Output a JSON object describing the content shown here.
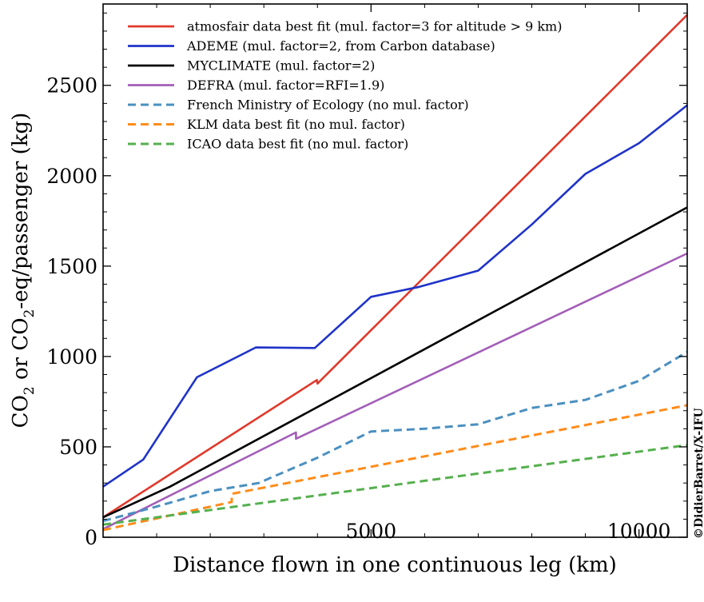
{
  "chart_data": {
    "type": "line",
    "xlabel": "Distance flown in one continuous leg (km)",
    "ylabel_parts": [
      "CO",
      "2",
      " or CO",
      "2",
      "-eq/passenger (kg)"
    ],
    "xlim": [
      0,
      10900
    ],
    "ylim": [
      0,
      2950
    ],
    "x_ticks": [
      5000,
      10000
    ],
    "y_ticks": [
      0,
      500,
      1000,
      1500,
      2000,
      2500
    ],
    "legend_position": "top-left",
    "series": [
      {
        "name": "atmosfair data best fit (mul. factor=3 for altitude > 9 km)",
        "color": "#e03a2c",
        "style": "solid",
        "points": [
          [
            0,
            110
          ],
          [
            3990,
            870
          ],
          [
            4000,
            850
          ],
          [
            10900,
            2890
          ]
        ]
      },
      {
        "name": "ADEME (mul. factor=2, from Carbon database)",
        "color": "#1f33c9",
        "style": "solid",
        "points": [
          [
            0,
            280
          ],
          [
            750,
            430
          ],
          [
            1750,
            885
          ],
          [
            2850,
            1050
          ],
          [
            3950,
            1047
          ],
          [
            5000,
            1330
          ],
          [
            5900,
            1385
          ],
          [
            7000,
            1475
          ],
          [
            8000,
            1730
          ],
          [
            9000,
            2010
          ],
          [
            10000,
            2180
          ],
          [
            10900,
            2390
          ]
        ]
      },
      {
        "name": "MYCLIMATE (mul. factor=2)",
        "color": "#000000",
        "style": "solid",
        "points": [
          [
            0,
            110
          ],
          [
            1250,
            280
          ],
          [
            10900,
            1825
          ]
        ]
      },
      {
        "name": "DEFRA (mul. factor=RFI=1.9)",
        "color": "#a35eb7",
        "style": "solid",
        "points": [
          [
            0,
            45
          ],
          [
            3600,
            580
          ],
          [
            3600,
            545
          ],
          [
            10900,
            1570
          ]
        ]
      },
      {
        "name": "French Ministry of Ecology (no mul. factor)",
        "color": "#4a90c0",
        "style": "dashed",
        "points": [
          [
            0,
            90
          ],
          [
            1000,
            170
          ],
          [
            2000,
            255
          ],
          [
            2900,
            300
          ],
          [
            4000,
            440
          ],
          [
            5000,
            585
          ],
          [
            6000,
            600
          ],
          [
            7000,
            625
          ],
          [
            8000,
            715
          ],
          [
            9000,
            760
          ],
          [
            10000,
            865
          ],
          [
            10900,
            1025
          ]
        ]
      },
      {
        "name": "KLM data best fit (no mul. factor)",
        "color": "#ff8c1a",
        "style": "dashed",
        "points": [
          [
            0,
            40
          ],
          [
            2400,
            195
          ],
          [
            2400,
            240
          ],
          [
            10900,
            730
          ]
        ]
      },
      {
        "name": "ICAO data best fit (no mul. factor)",
        "color": "#55b04e",
        "style": "dashed",
        "points": [
          [
            0,
            70
          ],
          [
            10900,
            510
          ]
        ]
      }
    ],
    "credit": "©DidierBarret/X-IFU"
  }
}
